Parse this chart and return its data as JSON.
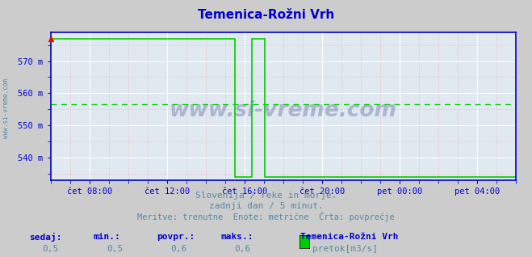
{
  "title": "Temenica-Rožni Vrh",
  "title_color": "#0000cc",
  "bg_color": "#cccccc",
  "plot_bg_color": "#e0e8f0",
  "grid_major_color": "#ffffff",
  "grid_minor_color": "#ffaaaa",
  "line_color": "#00cc00",
  "avg_line_color": "#00cc00",
  "border_color": "#0000cc",
  "tick_label_color": "#0000cc",
  "subtitle_color": "#5588aa",
  "watermark": "www.si-vreme.com",
  "watermark_color": "#334488",
  "watermark_alpha": 0.3,
  "sidebar_text": "www.si-vreme.com",
  "sidebar_color": "#5588aa",
  "subtitle1": "Slovenija / reke in morje.",
  "subtitle2": "zadnji dan / 5 minut.",
  "subtitle3": "Meritve: trenutne  Enote: metrične  Črta: povprečje",
  "footer_labels": [
    "sedaj:",
    "min.:",
    "povpr.:",
    "maks.:"
  ],
  "footer_values": [
    "0,5",
    "0,5",
    "0,6",
    "0,6"
  ],
  "legend_station": "Temenica-Rožni Vrh",
  "legend_label": "pretok[m3/s]",
  "legend_color": "#00cc00",
  "avg_value": 556.5,
  "ylim_min": 533,
  "ylim_max": 579,
  "yticks": [
    540,
    550,
    560,
    570
  ],
  "xlim_min": 6,
  "xlim_max": 30,
  "xticks": [
    8,
    12,
    16,
    20,
    24,
    28
  ],
  "xtick_labels": [
    "čet 08:00",
    "čet 12:00",
    "čet 16:00",
    "čet 20:00",
    "pet 00:00",
    "pet 04:00"
  ],
  "high_value": 577,
  "low_value": 534,
  "drop_hour": 15.5,
  "spike_start": 16.4,
  "spike_end": 17.05,
  "after_drop": 17.05
}
